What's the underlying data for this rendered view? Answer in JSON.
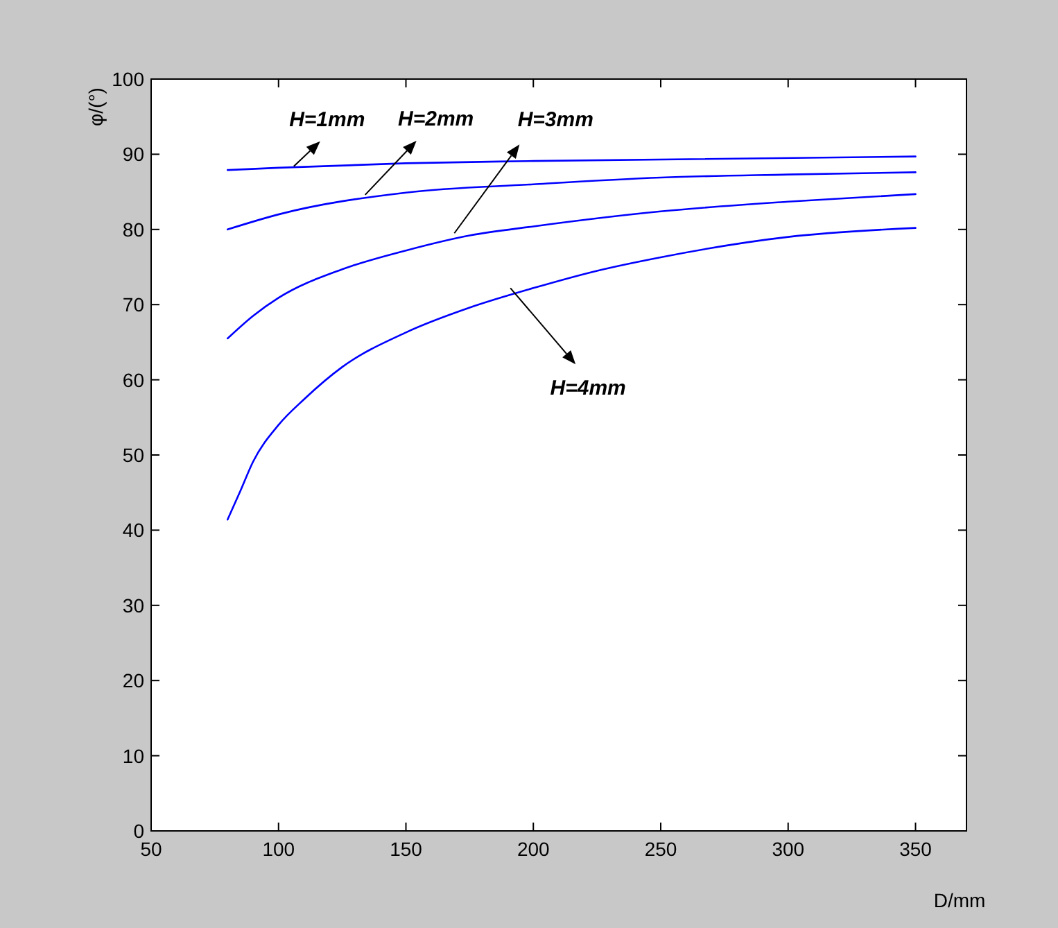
{
  "chart_data": {
    "type": "line",
    "xlabel": "D/mm",
    "ylabel": "φ/(°)",
    "xlim": [
      50,
      370
    ],
    "ylim": [
      0,
      100
    ],
    "xticks": [
      50,
      100,
      150,
      200,
      250,
      300,
      350
    ],
    "yticks": [
      0,
      10,
      20,
      30,
      40,
      50,
      60,
      70,
      80,
      90,
      100
    ],
    "grid": false,
    "marker": "none",
    "line_style": "solid",
    "series": [
      {
        "color": "#0000ff",
        "x": [
          80,
          100,
          150,
          200,
          350
        ],
        "values": [
          87.9,
          88.2,
          88.8,
          89.1,
          89.7
        ]
      },
      {
        "color": "#0000ff",
        "x": [
          80,
          100,
          150,
          200,
          250,
          300,
          350
        ],
        "values": [
          80.0,
          82.0,
          84.9,
          86.0,
          86.9,
          87.3,
          87.6
        ]
      },
      {
        "color": "#0000ff",
        "x": [
          80,
          90,
          100,
          125,
          150,
          175,
          200,
          250,
          300,
          350
        ],
        "values": [
          65.5,
          68.5,
          70.9,
          74.7,
          77.2,
          79.2,
          80.4,
          82.4,
          83.7,
          84.7
        ]
      },
      {
        "color": "#0000ff",
        "x": [
          80,
          85,
          90,
          100,
          110,
          125,
          150,
          175,
          200,
          225,
          250,
          300,
          350
        ],
        "values": [
          41.4,
          45.2,
          49.1,
          54.0,
          57.4,
          61.7,
          66.3,
          69.6,
          72.2,
          74.5,
          76.3,
          79.0,
          80.2
        ]
      }
    ],
    "annotations": [
      {
        "text": "H=1mm",
        "x": 106,
        "y": 88.4
      },
      {
        "text": "H=2mm",
        "x": 134,
        "y": 84.6
      },
      {
        "text": "H=3mm",
        "x": 169,
        "y": 79.5
      },
      {
        "text": "H=4mm",
        "x": 191,
        "y": 72.2
      }
    ]
  }
}
